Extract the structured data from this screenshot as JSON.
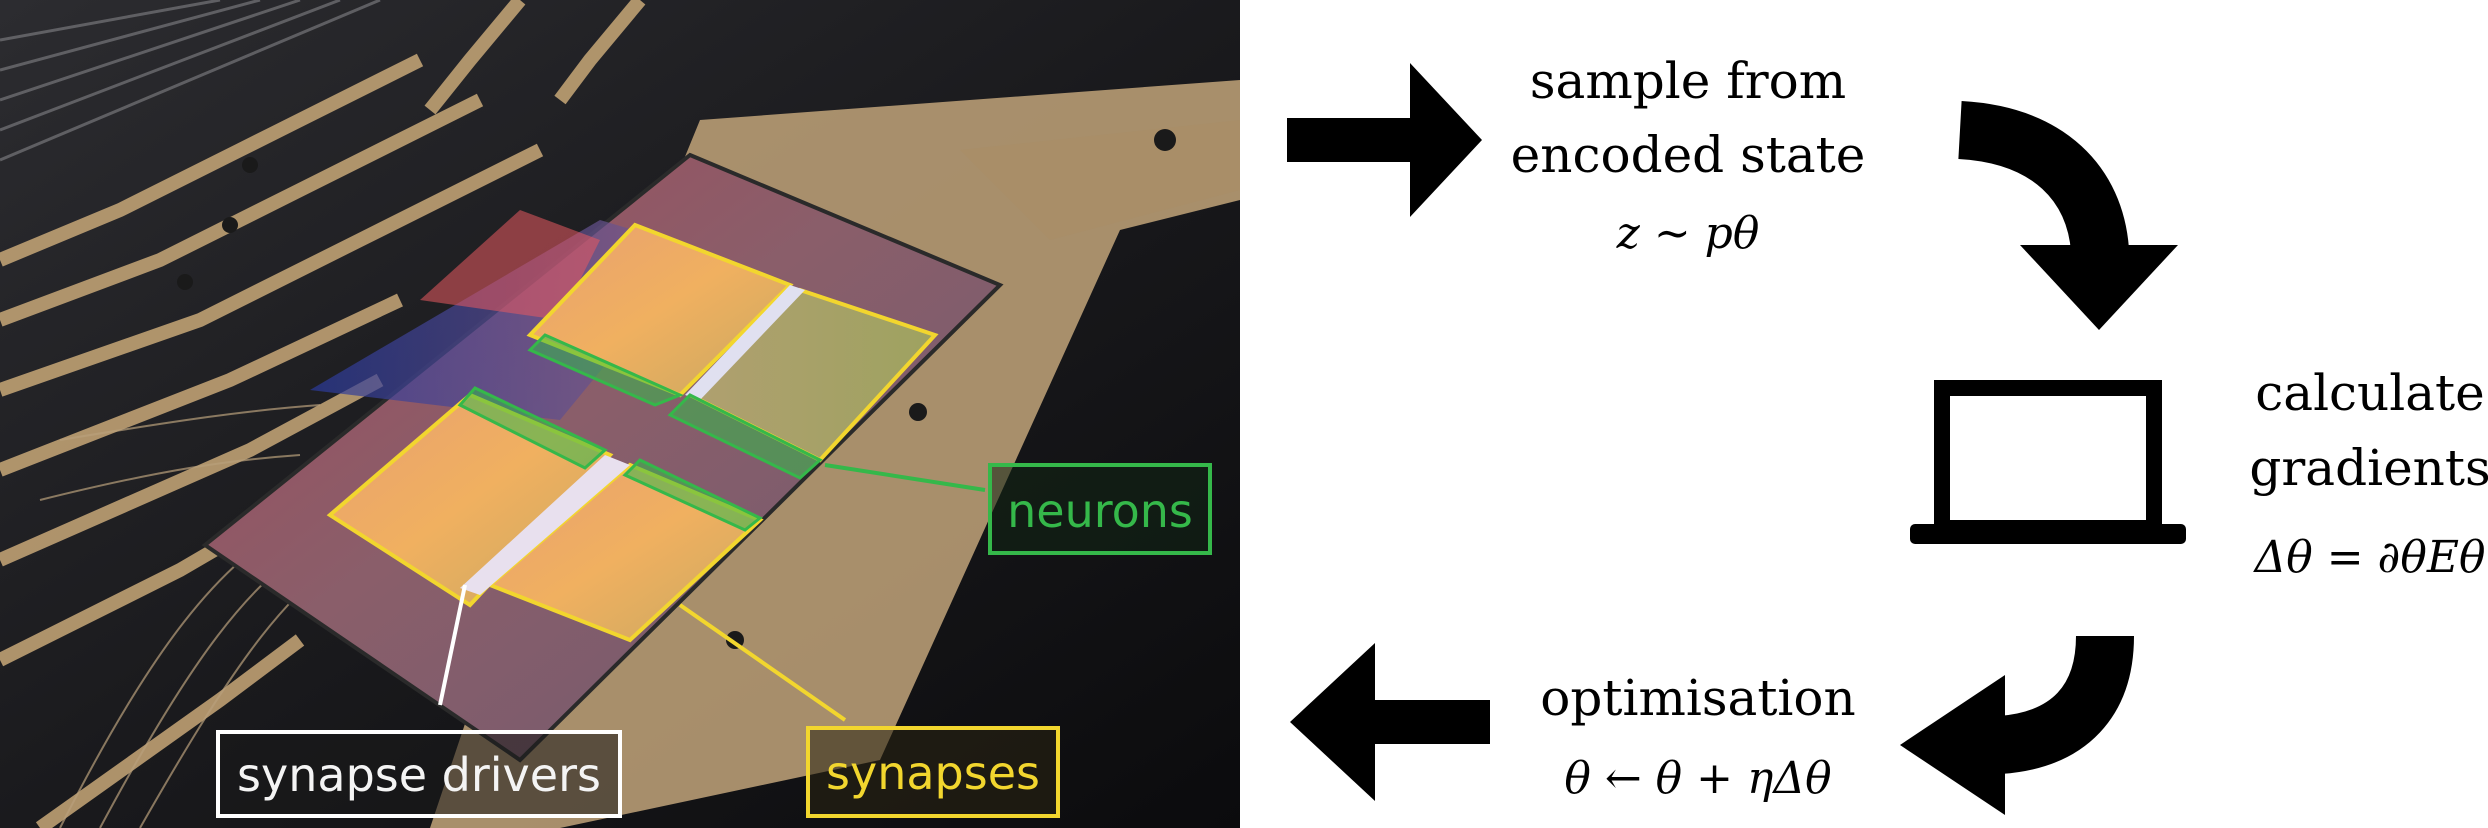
{
  "photo": {
    "labels": {
      "neurons": "neurons",
      "synapse_drivers": "synapse drivers",
      "synapses": "synapses"
    },
    "colors": {
      "neurons": "#35b84a",
      "synapse_drivers": "#ffffff",
      "synapses": "#f2d62e"
    }
  },
  "steps": {
    "sample": {
      "line1": "sample from",
      "line2": "encoded state",
      "formula": "z ∼ pθ"
    },
    "gradients": {
      "line1": "calculate",
      "line2": "gradients",
      "formula": "Δθ = ∂θEθ"
    },
    "optimisation": {
      "line1": "optimisation",
      "formula": "θ ← θ + ηΔθ"
    }
  },
  "icons": [
    "right-arrow-icon",
    "curved-arrow-down-icon",
    "laptop-icon",
    "curved-arrow-down-left-icon",
    "left-arrow-icon"
  ]
}
